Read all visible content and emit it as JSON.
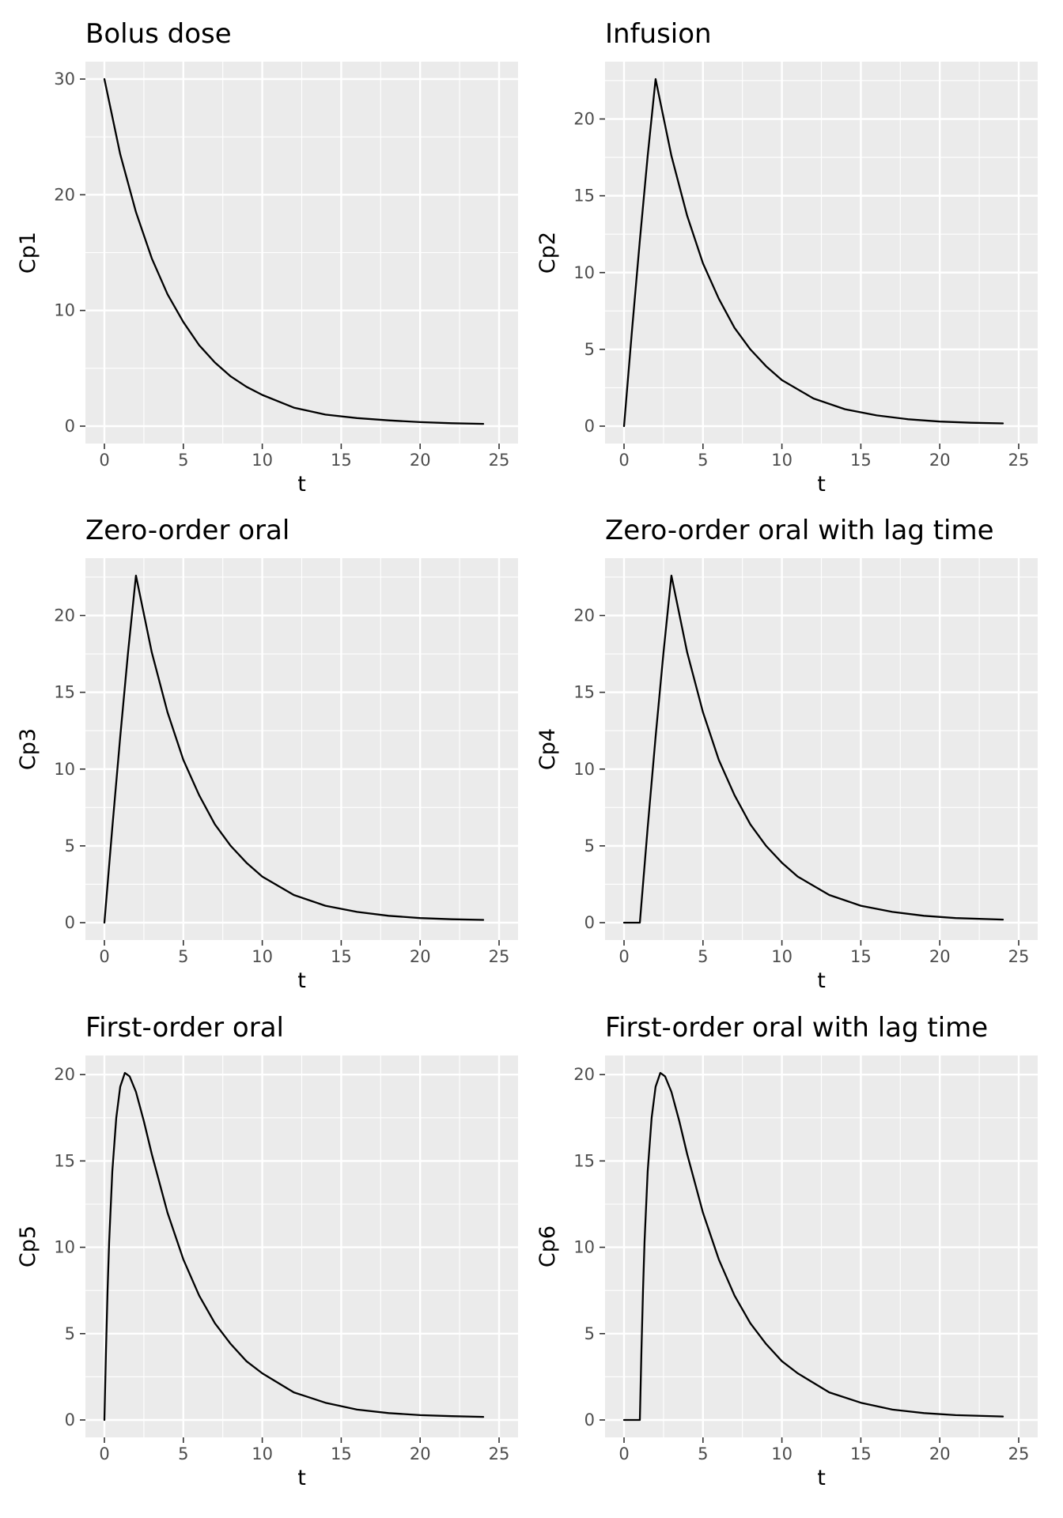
{
  "chart_data": [
    {
      "type": "line",
      "title": "Bolus dose",
      "xlabel": "t",
      "ylabel": "Cp1",
      "xlim": [
        0,
        25
      ],
      "ylim": [
        0,
        30
      ],
      "xticks": [
        0,
        5,
        10,
        15,
        20,
        25
      ],
      "yticks": [
        0,
        10,
        20,
        30
      ],
      "grid": true,
      "x": [
        0,
        1,
        2,
        3,
        4,
        5,
        6,
        7,
        8,
        9,
        10,
        12,
        14,
        16,
        18,
        20,
        22,
        24
      ],
      "series": [
        {
          "values": [
            30,
            23.5,
            18.5,
            14.5,
            11.4,
            9.0,
            7.0,
            5.5,
            4.3,
            3.4,
            2.7,
            1.6,
            1.0,
            0.7,
            0.5,
            0.35,
            0.25,
            0.2
          ]
        }
      ]
    },
    {
      "type": "line",
      "title": "Infusion",
      "xlabel": "t",
      "ylabel": "Cp2",
      "xlim": [
        0,
        25
      ],
      "ylim": [
        0,
        22.6
      ],
      "xticks": [
        0,
        5,
        10,
        15,
        20,
        25
      ],
      "yticks": [
        0,
        5,
        10,
        15,
        20
      ],
      "grid": true,
      "x": [
        0,
        0.5,
        1,
        1.5,
        2,
        3,
        4,
        5,
        6,
        7,
        8,
        9,
        10,
        12,
        14,
        16,
        18,
        20,
        22,
        24
      ],
      "series": [
        {
          "values": [
            0,
            6.2,
            12.1,
            17.6,
            22.6,
            17.6,
            13.7,
            10.6,
            8.3,
            6.4,
            5.0,
            3.9,
            3.0,
            1.8,
            1.1,
            0.7,
            0.45,
            0.3,
            0.22,
            0.18
          ]
        }
      ]
    },
    {
      "type": "line",
      "title": "Zero-order oral",
      "xlabel": "t",
      "ylabel": "Cp3",
      "xlim": [
        0,
        25
      ],
      "ylim": [
        0,
        22.6
      ],
      "xticks": [
        0,
        5,
        10,
        15,
        20,
        25
      ],
      "yticks": [
        0,
        5,
        10,
        15,
        20
      ],
      "grid": true,
      "x": [
        0,
        0.5,
        1,
        1.5,
        2,
        3,
        4,
        5,
        6,
        7,
        8,
        9,
        10,
        12,
        14,
        16,
        18,
        20,
        22,
        24
      ],
      "series": [
        {
          "values": [
            0,
            6.2,
            12.1,
            17.6,
            22.6,
            17.6,
            13.7,
            10.6,
            8.3,
            6.4,
            5.0,
            3.9,
            3.0,
            1.8,
            1.1,
            0.7,
            0.45,
            0.3,
            0.22,
            0.18
          ]
        }
      ]
    },
    {
      "type": "line",
      "title": "Zero-order oral with lag time",
      "xlabel": "t",
      "ylabel": "Cp4",
      "xlim": [
        0,
        25
      ],
      "ylim": [
        0,
        22.6
      ],
      "xticks": [
        0,
        5,
        10,
        15,
        20,
        25
      ],
      "yticks": [
        0,
        5,
        10,
        15,
        20
      ],
      "grid": true,
      "x": [
        0,
        1,
        1.5,
        2,
        2.5,
        3,
        4,
        5,
        6,
        7,
        8,
        9,
        10,
        11,
        13,
        15,
        17,
        19,
        21,
        24
      ],
      "series": [
        {
          "values": [
            0,
            0,
            6.2,
            12.1,
            17.6,
            22.6,
            17.6,
            13.7,
            10.6,
            8.3,
            6.4,
            5.0,
            3.9,
            3.0,
            1.8,
            1.1,
            0.7,
            0.45,
            0.3,
            0.2
          ]
        }
      ]
    },
    {
      "type": "line",
      "title": "First-order oral",
      "xlabel": "t",
      "ylabel": "Cp5",
      "xlim": [
        0,
        25
      ],
      "ylim": [
        0,
        20.1
      ],
      "xticks": [
        0,
        5,
        10,
        15,
        20,
        25
      ],
      "yticks": [
        0,
        5,
        10,
        15,
        20
      ],
      "grid": true,
      "x": [
        0,
        0.1,
        0.2,
        0.3,
        0.5,
        0.75,
        1,
        1.3,
        1.6,
        2,
        2.5,
        3,
        4,
        5,
        6,
        7,
        8,
        9,
        10,
        12,
        14,
        16,
        18,
        20,
        22,
        24
      ],
      "series": [
        {
          "values": [
            0,
            4.0,
            7.5,
            10.3,
            14.4,
            17.5,
            19.3,
            20.1,
            19.9,
            19.0,
            17.3,
            15.4,
            12.0,
            9.3,
            7.2,
            5.6,
            4.4,
            3.4,
            2.7,
            1.6,
            1.0,
            0.6,
            0.4,
            0.28,
            0.22,
            0.18
          ]
        }
      ]
    },
    {
      "type": "line",
      "title": "First-order oral with lag time",
      "xlabel": "t",
      "ylabel": "Cp6",
      "xlim": [
        0,
        25
      ],
      "ylim": [
        0,
        20.1
      ],
      "xticks": [
        0,
        5,
        10,
        15,
        20,
        25
      ],
      "yticks": [
        0,
        5,
        10,
        15,
        20
      ],
      "grid": true,
      "x": [
        0,
        1,
        1.1,
        1.2,
        1.3,
        1.5,
        1.75,
        2,
        2.3,
        2.6,
        3,
        3.5,
        4,
        5,
        6,
        7,
        8,
        9,
        10,
        11,
        13,
        15,
        17,
        19,
        21,
        24
      ],
      "series": [
        {
          "values": [
            0,
            0,
            4.0,
            7.5,
            10.3,
            14.4,
            17.5,
            19.3,
            20.1,
            19.9,
            19.0,
            17.3,
            15.4,
            12.0,
            9.3,
            7.2,
            5.6,
            4.4,
            3.4,
            2.7,
            1.6,
            1.0,
            0.6,
            0.4,
            0.28,
            0.2
          ]
        }
      ]
    }
  ]
}
